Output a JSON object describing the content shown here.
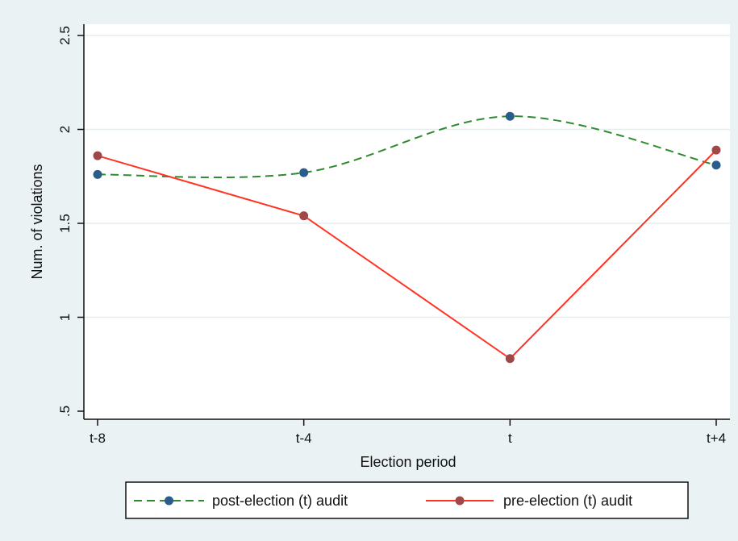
{
  "chart_data": {
    "type": "line",
    "xlabel": "Election period",
    "ylabel": "Num. of violations",
    "categories": [
      "t-8",
      "t-4",
      "t",
      "t+4"
    ],
    "ylim": [
      0.5,
      2.5
    ],
    "yticks": [
      ".5",
      "1",
      "1.5",
      "2",
      "2.5"
    ],
    "ytick_values": [
      0.5,
      1,
      1.5,
      2,
      2.5
    ],
    "grid": true,
    "legend_position": "bottom",
    "series": [
      {
        "name": "post-election (t) audit",
        "values": [
          1.76,
          1.77,
          2.07,
          1.81
        ],
        "line_color": "#2e8b2e",
        "marker_color": "#2b5d8c",
        "line_style": "dashed",
        "smooth": true
      },
      {
        "name": "pre-election (t) audit",
        "values": [
          1.86,
          1.54,
          0.78,
          1.89
        ],
        "line_color": "#ff3322",
        "marker_color": "#a04848",
        "line_style": "solid",
        "smooth": false
      }
    ]
  }
}
